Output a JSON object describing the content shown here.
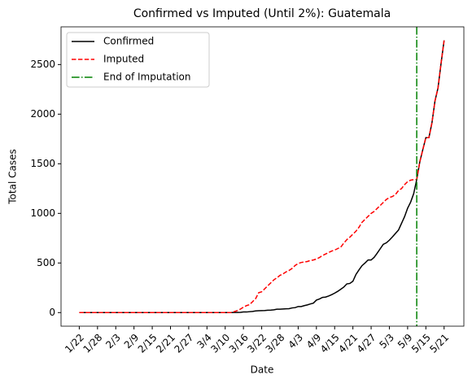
{
  "chart_data": {
    "type": "line",
    "title": "Confirmed vs Imputed (Until 2%): Guatemala",
    "x_label": "Date",
    "y_label": "Total Cases",
    "categories": [
      "1/22",
      null,
      null,
      null,
      null,
      null,
      "1/28",
      null,
      null,
      null,
      null,
      null,
      "2/3",
      null,
      null,
      null,
      null,
      null,
      "2/9",
      null,
      null,
      null,
      null,
      null,
      "2/15",
      null,
      null,
      null,
      null,
      null,
      "2/21",
      null,
      null,
      null,
      null,
      null,
      "2/27",
      null,
      null,
      null,
      null,
      null,
      "3/4",
      null,
      null,
      null,
      null,
      null,
      "3/10",
      null,
      null,
      null,
      null,
      null,
      "3/16",
      null,
      null,
      null,
      null,
      null,
      "3/22",
      null,
      null,
      null,
      null,
      null,
      "3/28",
      null,
      null,
      null,
      null,
      null,
      "4/3",
      null,
      null,
      null,
      null,
      null,
      "4/9",
      null,
      null,
      null,
      null,
      null,
      "4/15",
      null,
      null,
      null,
      null,
      null,
      "4/21",
      null,
      null,
      null,
      null,
      null,
      "4/27",
      null,
      null,
      null,
      null,
      null,
      "5/3",
      null,
      null,
      null,
      null,
      null,
      "5/9",
      null,
      null,
      null,
      null,
      null,
      "5/15",
      null,
      null,
      null,
      null,
      null,
      "5/21"
    ],
    "series": [
      {
        "name": "Confirmed",
        "color": "#000000",
        "linestyle": "solid",
        "values": [
          0,
          0,
          0,
          0,
          0,
          0,
          0,
          0,
          0,
          0,
          0,
          0,
          0,
          0,
          0,
          0,
          0,
          0,
          0,
          0,
          0,
          0,
          0,
          0,
          0,
          0,
          0,
          0,
          0,
          0,
          0,
          0,
          0,
          0,
          0,
          0,
          0,
          0,
          0,
          0,
          0,
          0,
          0,
          0,
          0,
          0,
          0,
          0,
          0,
          0,
          0,
          1,
          1,
          2,
          6,
          6,
          9,
          12,
          17,
          19,
          20,
          21,
          24,
          25,
          28,
          34,
          34,
          36,
          38,
          39,
          47,
          50,
          61,
          61,
          70,
          77,
          87,
          95,
          126,
          137,
          153,
          156,
          167,
          180,
          196,
          214,
          235,
          257,
          289,
          294,
          316,
          384,
          430,
          473,
          500,
          530,
          530,
          557,
          599,
          644,
          688,
          703,
          730,
          763,
          798,
          832,
          900,
          967,
          1052,
          1114,
          1199,
          1342,
          1518,
          1643,
          1763,
          1763,
          1912,
          2133,
          2265,
          2512,
          2743
        ]
      },
      {
        "name": "Imputed",
        "color": "#ff0000",
        "linestyle": "dashed",
        "values": [
          0,
          0,
          0,
          0,
          0,
          0,
          0,
          0,
          0,
          0,
          0,
          0,
          0,
          0,
          0,
          0,
          0,
          0,
          0,
          0,
          0,
          0,
          0,
          0,
          0,
          0,
          0,
          0,
          0,
          0,
          0,
          0,
          0,
          0,
          0,
          0,
          0,
          0,
          0,
          0,
          0,
          0,
          0,
          0,
          0,
          0,
          0,
          0,
          0,
          0,
          0,
          10,
          20,
          35,
          55,
          70,
          80,
          110,
          140,
          200,
          210,
          240,
          270,
          300,
          330,
          350,
          375,
          390,
          410,
          425,
          445,
          475,
          495,
          505,
          510,
          515,
          525,
          530,
          540,
          555,
          575,
          590,
          605,
          620,
          630,
          645,
          660,
          700,
          735,
          760,
          790,
          820,
          860,
          910,
          940,
          970,
          1000,
          1020,
          1050,
          1080,
          1110,
          1140,
          1160,
          1170,
          1190,
          1230,
          1250,
          1290,
          1320,
          1335,
          1340,
          1342,
          1518,
          1643,
          1763,
          1763,
          1912,
          2133,
          2265,
          2512,
          2743
        ]
      }
    ],
    "vline": {
      "name": "End of Imputation",
      "color": "#008000",
      "x": 111
    },
    "xlim": [
      -6,
      126.5
    ],
    "ylim": [
      -137,
      2880
    ],
    "yticks": [
      0,
      500,
      1000,
      1500,
      2000,
      2500
    ],
    "legend": "upper left"
  }
}
